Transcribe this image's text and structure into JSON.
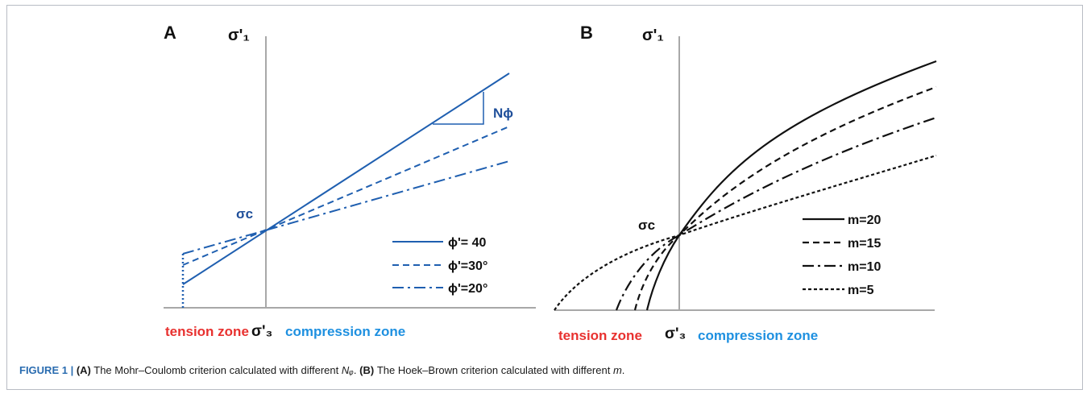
{
  "panelA": {
    "letter": "A",
    "y_axis_label": "σ'₁",
    "x_axis_label": "σ'₃",
    "sigma_c_label": "σc",
    "slope_label": "Nϕ",
    "tension_label": "tension zone",
    "compression_label": "compression zone",
    "legend": [
      {
        "label": "ϕ'= 40",
        "style": "solid"
      },
      {
        "label": "ϕ'=30°",
        "style": "dashed"
      },
      {
        "label": "ϕ'=20°",
        "style": "dashdot"
      }
    ],
    "line_color": "#1f5fb0"
  },
  "panelB": {
    "letter": "B",
    "y_axis_label": "σ'₁",
    "x_axis_label": "σ'₃",
    "sigma_c_label": "σc",
    "tension_label": "tension zone",
    "compression_label": "compression zone",
    "legend": [
      {
        "label": "m=20",
        "style": "solid"
      },
      {
        "label": "m=15",
        "style": "dashed"
      },
      {
        "label": "m=10",
        "style": "dashdot"
      },
      {
        "label": "m=5",
        "style": "dotted"
      }
    ],
    "line_color": "#111111"
  },
  "caption": {
    "figure_label": "FIGURE 1 |",
    "a_ref": "(A)",
    "a_text_before": " The Mohr–Coulomb criterion calculated with different ",
    "a_symbol": "Nᵩ",
    "a_text_after": ". ",
    "b_ref": "(B)",
    "b_text_before": " The Hoek–Brown criterion calculated with different ",
    "b_symbol": "m",
    "b_text_after": "."
  },
  "colors": {
    "tension": "#e8312f",
    "compression": "#1e90e0",
    "axis": "#a8a8a8",
    "blue_text": "#1f4f9a"
  }
}
